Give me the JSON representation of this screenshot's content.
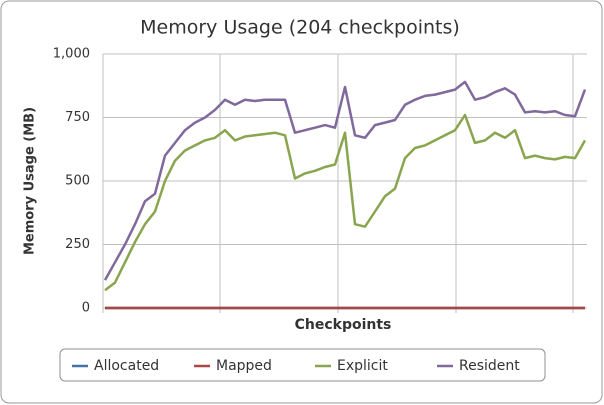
{
  "chart_data": {
    "type": "line",
    "title": "Memory Usage (204 checkpoints)",
    "x_label": "Checkpoints",
    "y_label": "Memory Usage (MB)",
    "categories": [
      null,
      null,
      null,
      null,
      null,
      null,
      null,
      null,
      null,
      null,
      null,
      null,
      null,
      null,
      null,
      null,
      null,
      null,
      null,
      null,
      null,
      null,
      null,
      null,
      null,
      null,
      null,
      null,
      null,
      null,
      null,
      null,
      null,
      null,
      null,
      null,
      null,
      null,
      null,
      null,
      null,
      null,
      null,
      null,
      null,
      null,
      null,
      null,
      null
    ],
    "series": [
      {
        "name": "Allocated",
        "color": "#4572a7",
        "values": [
          0,
          0,
          0,
          0,
          0,
          0,
          0,
          0,
          0,
          0,
          0,
          0,
          0,
          0,
          0,
          0,
          0,
          0,
          0,
          0,
          0,
          0,
          0,
          0,
          0,
          0,
          0,
          0,
          0,
          0,
          0,
          0,
          0,
          0,
          0,
          0,
          0,
          0,
          0,
          0,
          0,
          0,
          0,
          0,
          0,
          0,
          0,
          0,
          0
        ]
      },
      {
        "name": "Mapped",
        "color": "#aa4643",
        "values": [
          0,
          0,
          0,
          0,
          0,
          0,
          0,
          0,
          0,
          0,
          0,
          0,
          0,
          0,
          0,
          0,
          0,
          0,
          0,
          0,
          0,
          0,
          0,
          0,
          0,
          0,
          0,
          0,
          0,
          0,
          0,
          0,
          0,
          0,
          0,
          0,
          0,
          0,
          0,
          0,
          0,
          0,
          0,
          0,
          0,
          0,
          0,
          0,
          0
        ]
      },
      {
        "name": "Explicit",
        "color": "#89a54e",
        "values": [
          70,
          100,
          180,
          260,
          330,
          380,
          500,
          580,
          620,
          640,
          660,
          670,
          700,
          660,
          675,
          680,
          685,
          690,
          680,
          510,
          530,
          540,
          555,
          565,
          690,
          330,
          320,
          380,
          440,
          470,
          590,
          630,
          640,
          660,
          680,
          700,
          760,
          650,
          660,
          690,
          670,
          700,
          590,
          600,
          590,
          585,
          595,
          590,
          660
        ]
      },
      {
        "name": "Resident",
        "color": "#80699b",
        "values": [
          110,
          180,
          250,
          330,
          420,
          450,
          600,
          650,
          700,
          730,
          750,
          780,
          820,
          800,
          820,
          815,
          820,
          820,
          820,
          690,
          700,
          710,
          720,
          710,
          870,
          680,
          670,
          720,
          730,
          740,
          800,
          820,
          835,
          840,
          850,
          860,
          890,
          820,
          830,
          850,
          865,
          840,
          770,
          775,
          770,
          775,
          760,
          755,
          860
        ]
      }
    ],
    "ylim": [
      0,
      1000
    ],
    "yticks": [
      0,
      250,
      500,
      750,
      {
        "value": 1000,
        "label": "1,000"
      }
    ],
    "grid": true
  }
}
